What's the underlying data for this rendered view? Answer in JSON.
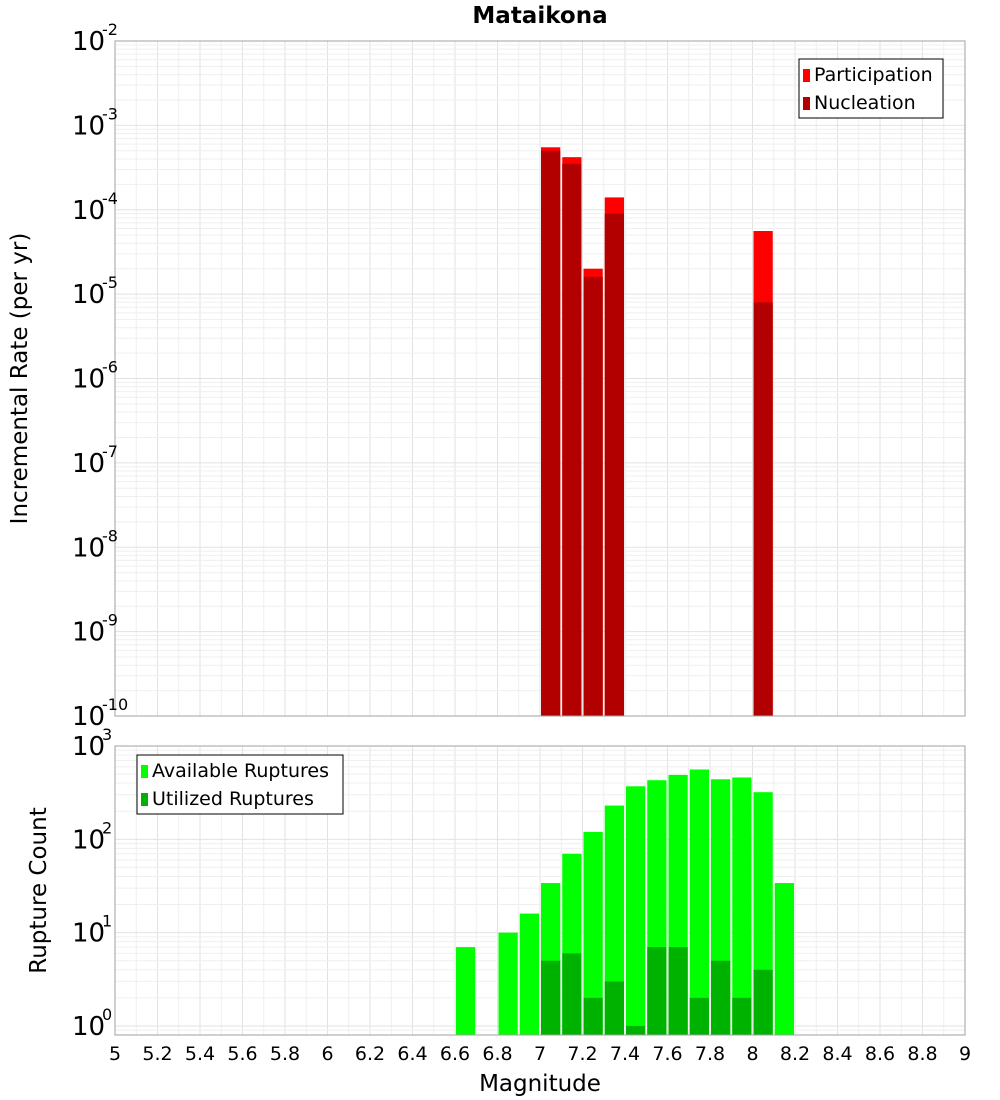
{
  "chart_data": [
    {
      "type": "bar",
      "title": "Mataikona",
      "xlabel": "",
      "ylabel": "Incremental Rate (per yr)",
      "y_scale": "log",
      "ylim": [
        1e-10,
        0.01
      ],
      "xlim": [
        5,
        9
      ],
      "y_tick_exponents": [
        "-10",
        "-9",
        "-8",
        "-7",
        "-6",
        "-5",
        "-4",
        "-3",
        "-2"
      ],
      "legend_position": "top-right",
      "grid": true,
      "series": [
        {
          "name": "Participation",
          "color": "#ff0000",
          "points": [
            {
              "x": 7.05,
              "y": 0.00055
            },
            {
              "x": 7.15,
              "y": 0.00042
            },
            {
              "x": 7.25,
              "y": 2e-05
            },
            {
              "x": 7.35,
              "y": 0.00014
            },
            {
              "x": 8.05,
              "y": 5.6e-05
            }
          ]
        },
        {
          "name": "Nucleation",
          "color": "#b20000",
          "points": [
            {
              "x": 7.05,
              "y": 0.0005
            },
            {
              "x": 7.15,
              "y": 0.00035
            },
            {
              "x": 7.25,
              "y": 1.6e-05
            },
            {
              "x": 7.35,
              "y": 9e-05
            },
            {
              "x": 8.05,
              "y": 8e-06
            }
          ]
        }
      ]
    },
    {
      "type": "bar",
      "title": "",
      "xlabel": "Magnitude",
      "ylabel": "Rupture Count",
      "y_scale": "log",
      "ylim": [
        0.8,
        1000
      ],
      "xlim": [
        5,
        9
      ],
      "y_tick_exponents": [
        "0",
        "1",
        "2",
        "3"
      ],
      "x_ticks": [
        "5",
        "5.2",
        "5.4",
        "5.6",
        "5.8",
        "6",
        "6.2",
        "6.4",
        "6.6",
        "6.8",
        "7",
        "7.2",
        "7.4",
        "7.6",
        "7.8",
        "8",
        "8.2",
        "8.4",
        "8.6",
        "8.8",
        "9"
      ],
      "legend_position": "top-left",
      "grid": true,
      "series": [
        {
          "name": "Available Ruptures",
          "color": "#00ff00",
          "points": [
            {
              "x": 6.65,
              "y": 7
            },
            {
              "x": 6.85,
              "y": 10
            },
            {
              "x": 6.95,
              "y": 16
            },
            {
              "x": 7.05,
              "y": 34
            },
            {
              "x": 7.15,
              "y": 70
            },
            {
              "x": 7.25,
              "y": 120
            },
            {
              "x": 7.35,
              "y": 230
            },
            {
              "x": 7.45,
              "y": 370
            },
            {
              "x": 7.55,
              "y": 430
            },
            {
              "x": 7.65,
              "y": 490
            },
            {
              "x": 7.75,
              "y": 560
            },
            {
              "x": 7.85,
              "y": 440
            },
            {
              "x": 7.95,
              "y": 460
            },
            {
              "x": 8.05,
              "y": 320
            },
            {
              "x": 8.15,
              "y": 34
            }
          ]
        },
        {
          "name": "Utilized Ruptures",
          "color": "#00b200",
          "points": [
            {
              "x": 7.05,
              "y": 5
            },
            {
              "x": 7.15,
              "y": 6
            },
            {
              "x": 7.25,
              "y": 2
            },
            {
              "x": 7.35,
              "y": 3
            },
            {
              "x": 7.45,
              "y": 1
            },
            {
              "x": 7.55,
              "y": 7
            },
            {
              "x": 7.65,
              "y": 7
            },
            {
              "x": 7.75,
              "y": 2
            },
            {
              "x": 7.85,
              "y": 5
            },
            {
              "x": 7.95,
              "y": 2
            },
            {
              "x": 8.05,
              "y": 4
            }
          ]
        }
      ]
    }
  ]
}
